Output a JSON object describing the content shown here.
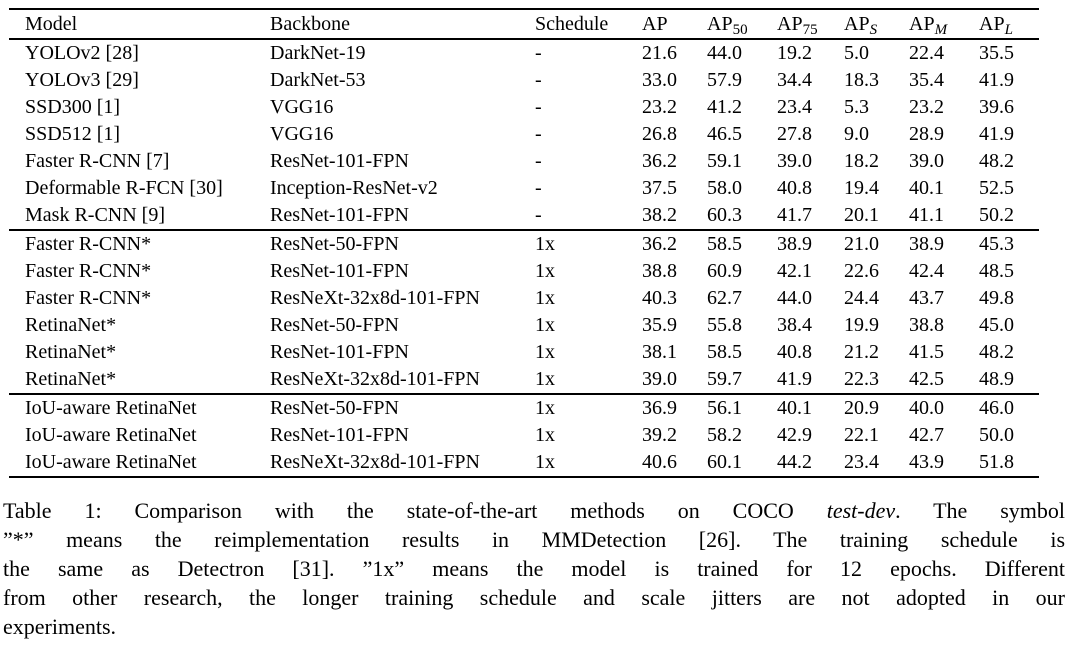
{
  "table": {
    "columns": [
      {
        "text": "Model"
      },
      {
        "text": "Backbone"
      },
      {
        "text": "Schedule"
      },
      {
        "text": "AP"
      },
      {
        "text": "AP",
        "sub": "50"
      },
      {
        "text": "AP",
        "sub": "75"
      },
      {
        "text": "AP",
        "sub": "S"
      },
      {
        "text": "AP",
        "sub": "M"
      },
      {
        "text": "AP",
        "sub": "L"
      }
    ],
    "groups": [
      {
        "rows": [
          [
            "YOLOv2 [28]",
            "DarkNet-19",
            "-",
            "21.6",
            "44.0",
            "19.2",
            "5.0",
            "22.4",
            "35.5"
          ],
          [
            "YOLOv3 [29]",
            "DarkNet-53",
            "-",
            "33.0",
            "57.9",
            "34.4",
            "18.3",
            "35.4",
            "41.9"
          ],
          [
            "SSD300 [1]",
            "VGG16",
            "-",
            "23.2",
            "41.2",
            "23.4",
            "5.3",
            "23.2",
            "39.6"
          ],
          [
            "SSD512 [1]",
            "VGG16",
            "-",
            "26.8",
            "46.5",
            "27.8",
            "9.0",
            "28.9",
            "41.9"
          ],
          [
            "Faster R-CNN [7]",
            "ResNet-101-FPN",
            "-",
            "36.2",
            "59.1",
            "39.0",
            "18.2",
            "39.0",
            "48.2"
          ],
          [
            "Deformable R-FCN [30]",
            "Inception-ResNet-v2",
            "-",
            "37.5",
            "58.0",
            "40.8",
            "19.4",
            "40.1",
            "52.5"
          ],
          [
            "Mask R-CNN [9]",
            "ResNet-101-FPN",
            "-",
            "38.2",
            "60.3",
            "41.7",
            "20.1",
            "41.1",
            "50.2"
          ]
        ]
      },
      {
        "rows": [
          [
            "Faster R-CNN*",
            "ResNet-50-FPN",
            "1x",
            "36.2",
            "58.5",
            "38.9",
            "21.0",
            "38.9",
            "45.3"
          ],
          [
            "Faster R-CNN*",
            "ResNet-101-FPN",
            "1x",
            "38.8",
            "60.9",
            "42.1",
            "22.6",
            "42.4",
            "48.5"
          ],
          [
            "Faster R-CNN*",
            "ResNeXt-32x8d-101-FPN",
            "1x",
            "40.3",
            "62.7",
            "44.0",
            "24.4",
            "43.7",
            "49.8"
          ],
          [
            "RetinaNet*",
            "ResNet-50-FPN",
            "1x",
            "35.9",
            "55.8",
            "38.4",
            "19.9",
            "38.8",
            "45.0"
          ],
          [
            "RetinaNet*",
            "ResNet-101-FPN",
            "1x",
            "38.1",
            "58.5",
            "40.8",
            "21.2",
            "41.5",
            "48.2"
          ],
          [
            "RetinaNet*",
            "ResNeXt-32x8d-101-FPN",
            "1x",
            "39.0",
            "59.7",
            "41.9",
            "22.3",
            "42.5",
            "48.9"
          ]
        ]
      },
      {
        "rows": [
          [
            "IoU-aware RetinaNet",
            "ResNet-50-FPN",
            "1x",
            "36.9",
            "56.1",
            "40.1",
            "20.9",
            "40.0",
            "46.0"
          ],
          [
            "IoU-aware RetinaNet",
            "ResNet-101-FPN",
            "1x",
            "39.2",
            "58.2",
            "42.9",
            "22.1",
            "42.7",
            "50.0"
          ],
          [
            "IoU-aware RetinaNet",
            "ResNeXt-32x8d-101-FPN",
            "1x",
            "40.6",
            "60.1",
            "44.2",
            "23.4",
            "43.9",
            "51.8"
          ]
        ]
      }
    ]
  },
  "caption": {
    "lines": [
      {
        "segments": [
          {
            "text": "Table 1: Comparison with the state-of-the-art methods on COCO "
          },
          {
            "text": "test-dev",
            "italic": true
          },
          {
            "text": ". The symbol"
          }
        ]
      },
      {
        "segments": [
          {
            "text": "”*” means the reimplementation results in MMDetection [26]. The training schedule is"
          }
        ]
      },
      {
        "segments": [
          {
            "text": "the same as Detectron [31]. ”1x” means the model is trained for 12 epochs. Different"
          }
        ]
      },
      {
        "segments": [
          {
            "text": "from other research, the longer training schedule and scale jitters are not adopted in our"
          }
        ]
      },
      {
        "segments": [
          {
            "text": "experiments."
          }
        ]
      }
    ]
  }
}
